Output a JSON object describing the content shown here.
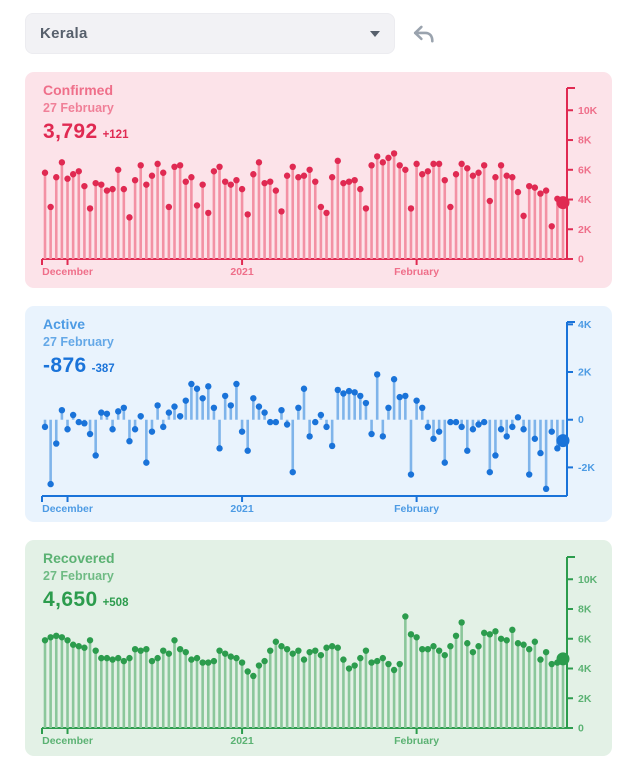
{
  "page": {
    "background": "#ffffff"
  },
  "toolbar": {
    "selected_state": "Kerala",
    "icons": {
      "caret": "chevron-down",
      "undo": "undo-arrow"
    }
  },
  "charts": [
    {
      "id": "confirmed",
      "title": "Confirmed",
      "date": "27 February",
      "value": "3,792",
      "delta": "+121",
      "colors": {
        "bg": "#fce3e9",
        "accent": "#e02a52",
        "soft": "#ef6f8a",
        "stem": "#f391a4"
      },
      "chart_data": {
        "type": "lollipop-time-series",
        "title": "Confirmed daily cases",
        "x_tick_labels": [
          "December",
          "2021",
          "February"
        ],
        "x_tick_indices": [
          4,
          35,
          66
        ],
        "ylim": [
          0,
          11500
        ],
        "yticks": [
          0,
          2000,
          4000,
          6000,
          8000,
          10000
        ],
        "ytick_labels": [
          "0",
          "2K",
          "4K",
          "6K",
          "8K",
          "10K"
        ],
        "values": [
          5800,
          3500,
          5500,
          6500,
          5400,
          5700,
          5900,
          4900,
          3400,
          5100,
          5000,
          4600,
          4700,
          6000,
          4700,
          2800,
          5300,
          6300,
          5000,
          5600,
          6400,
          5800,
          3500,
          6200,
          6300,
          5200,
          5500,
          3600,
          5000,
          3100,
          5900,
          6200,
          5200,
          5000,
          5300,
          4700,
          3000,
          5700,
          6500,
          5100,
          5200,
          4600,
          3200,
          5600,
          6200,
          5500,
          5600,
          6000,
          5200,
          3500,
          3100,
          5500,
          6600,
          5100,
          5200,
          5300,
          4700,
          3400,
          6300,
          6900,
          6500,
          6800,
          7100,
          6300,
          6000,
          3400,
          6400,
          5700,
          5900,
          6400,
          6400,
          5300,
          3500,
          5700,
          6400,
          6100,
          5600,
          5800,
          6300,
          3900,
          5500,
          6300,
          5600,
          5500,
          4500,
          2900,
          4900,
          4800,
          4400,
          4600,
          2200,
          4050,
          3792
        ]
      }
    },
    {
      "id": "active",
      "title": "Active",
      "date": "27 February",
      "value": "-876",
      "delta": "-387",
      "colors": {
        "bg": "#e9f3fd",
        "accent": "#1a73d9",
        "soft": "#4d9be4",
        "stem": "#7fb4ea"
      },
      "chart_data": {
        "type": "lollipop-time-series",
        "title": "Active daily change",
        "x_tick_labels": [
          "December",
          "2021",
          "February"
        ],
        "x_tick_indices": [
          4,
          35,
          66
        ],
        "ylim": [
          -3200,
          4100
        ],
        "yticks": [
          -2000,
          0,
          2000,
          4000
        ],
        "ytick_labels": [
          "-2K",
          "0",
          "2K",
          "4K"
        ],
        "values": [
          -300,
          -2700,
          -1000,
          400,
          -400,
          200,
          -100,
          -150,
          -600,
          -1500,
          300,
          250,
          -400,
          350,
          500,
          -900,
          -400,
          150,
          -1800,
          -500,
          600,
          -300,
          300,
          550,
          150,
          800,
          1500,
          1300,
          900,
          1400,
          500,
          -1200,
          1000,
          600,
          1500,
          -500,
          -1300,
          900,
          550,
          300,
          -100,
          -100,
          400,
          -200,
          -2200,
          500,
          1300,
          -700,
          -100,
          200,
          -300,
          -1100,
          1250,
          1100,
          1200,
          1150,
          1000,
          700,
          -600,
          1900,
          -700,
          500,
          1700,
          950,
          1000,
          -2300,
          800,
          500,
          -300,
          -800,
          -500,
          -1800,
          -100,
          -100,
          -300,
          -1300,
          -400,
          -200,
          -100,
          -2200,
          -1500,
          -400,
          -700,
          -300,
          100,
          -400,
          -2300,
          -800,
          -1400,
          -2900,
          -500,
          -1200,
          -876
        ]
      }
    },
    {
      "id": "recovered",
      "title": "Recovered",
      "date": "27 February",
      "value": "4,650",
      "delta": "+508",
      "colors": {
        "bg": "#e3f1e6",
        "accent": "#2c9c4d",
        "soft": "#5bb273",
        "stem": "#8bc79b"
      },
      "chart_data": {
        "type": "lollipop-time-series",
        "title": "Recovered daily cases",
        "x_tick_labels": [
          "December",
          "2021",
          "February"
        ],
        "x_tick_indices": [
          4,
          35,
          66
        ],
        "ylim": [
          0,
          11500
        ],
        "yticks": [
          0,
          2000,
          4000,
          6000,
          8000,
          10000
        ],
        "ytick_labels": [
          "0",
          "2K",
          "4K",
          "6K",
          "8K",
          "10K"
        ],
        "values": [
          5900,
          6100,
          6200,
          6100,
          5900,
          5600,
          5500,
          5400,
          5900,
          5200,
          4700,
          4700,
          4600,
          4700,
          4500,
          4700,
          5300,
          5200,
          5300,
          4500,
          4700,
          5200,
          5000,
          5900,
          5300,
          5100,
          4600,
          4700,
          4400,
          4400,
          4500,
          5200,
          5000,
          4800,
          4700,
          4400,
          3800,
          3500,
          4200,
          4500,
          5200,
          5800,
          5500,
          5300,
          5000,
          5200,
          4600,
          5100,
          5200,
          4900,
          5400,
          5500,
          5400,
          4600,
          4000,
          4200,
          4700,
          5200,
          4400,
          4500,
          4700,
          4300,
          3900,
          4300,
          7500,
          6300,
          6100,
          5300,
          5300,
          5500,
          5200,
          4900,
          5500,
          6200,
          7100,
          5700,
          5100,
          5500,
          6400,
          6300,
          6500,
          6000,
          5900,
          6600,
          5700,
          5600,
          5300,
          5800,
          4600,
          5100,
          4300,
          4400,
          4650
        ]
      }
    }
  ]
}
